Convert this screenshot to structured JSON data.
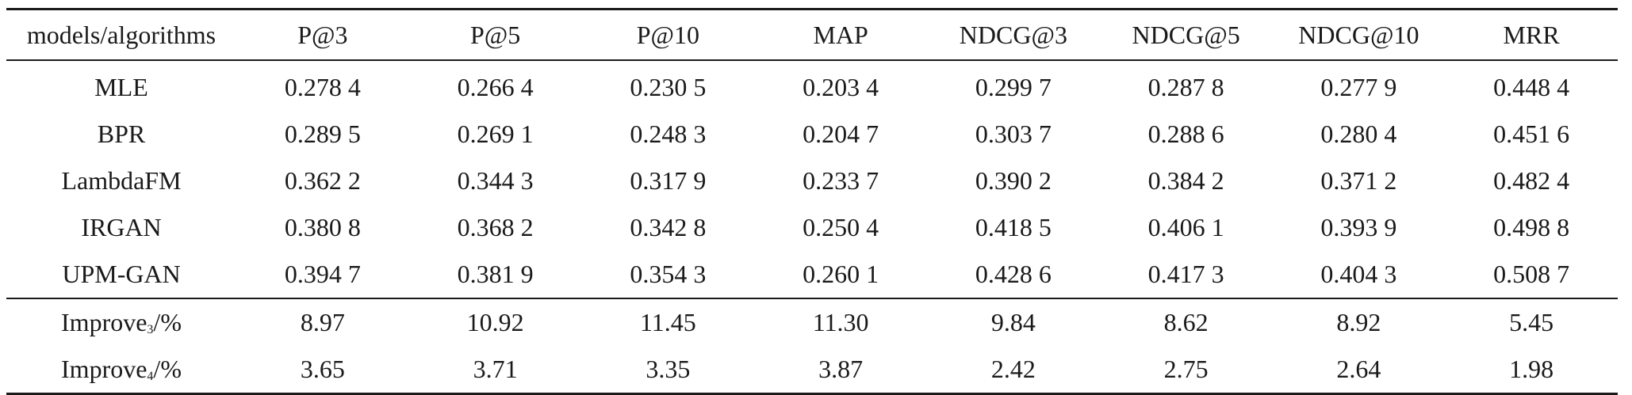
{
  "table": {
    "headers": [
      "models/algorithms",
      "P@3",
      "P@5",
      "P@10",
      "MAP",
      "NDCG@3",
      "NDCG@5",
      "NDCG@10",
      "MRR"
    ],
    "rows": [
      {
        "model": "MLE",
        "values": [
          "0.278 4",
          "0.266 4",
          "0.230 5",
          "0.203 4",
          "0.299 7",
          "0.287 8",
          "0.277 9",
          "0.448 4"
        ]
      },
      {
        "model": "BPR",
        "values": [
          "0.289 5",
          "0.269 1",
          "0.248 3",
          "0.204 7",
          "0.303 7",
          "0.288 6",
          "0.280 4",
          "0.451 6"
        ]
      },
      {
        "model": "LambdaFM",
        "values": [
          "0.362 2",
          "0.344 3",
          "0.317 9",
          "0.233 7",
          "0.390 2",
          "0.384 2",
          "0.371 2",
          "0.482 4"
        ]
      },
      {
        "model": "IRGAN",
        "values": [
          "0.380 8",
          "0.368 2",
          "0.342 8",
          "0.250 4",
          "0.418 5",
          "0.406 1",
          "0.393 9",
          "0.498 8"
        ]
      },
      {
        "model": "UPM-GAN",
        "values": [
          "0.394 7",
          "0.381 9",
          "0.354 3",
          "0.260 1",
          "0.428 6",
          "0.417 3",
          "0.404 3",
          "0.508 7"
        ]
      }
    ],
    "improvements": [
      {
        "label_base": "Improve",
        "label_sub": "3",
        "label_suffix": "/%",
        "values": [
          "8.97",
          "10.92",
          "11.45",
          "11.30",
          "9.84",
          "8.62",
          "8.92",
          "5.45"
        ]
      },
      {
        "label_base": "Improve",
        "label_sub": "4",
        "label_suffix": "/%",
        "values": [
          "3.65",
          "3.71",
          "3.35",
          "3.87",
          "2.42",
          "2.75",
          "2.64",
          "1.98"
        ]
      }
    ]
  }
}
